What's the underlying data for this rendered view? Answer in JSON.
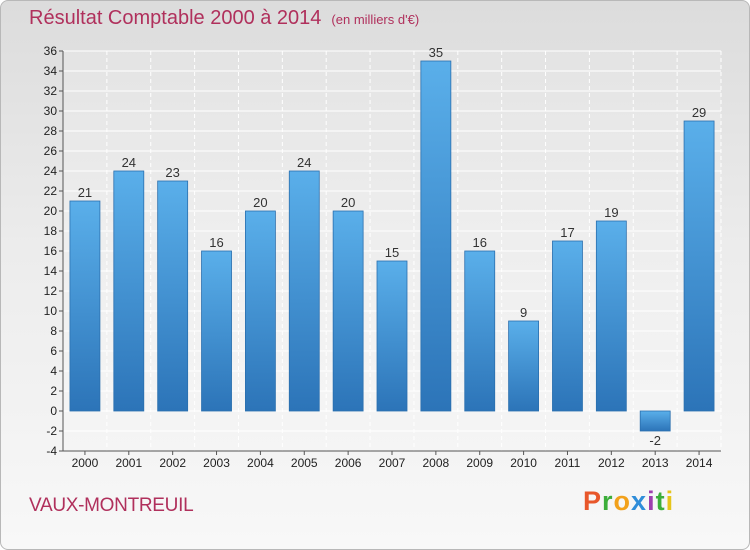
{
  "chart_data": {
    "type": "bar",
    "title": "Résultat Comptable 2000 à 2014",
    "subtitle": "(en milliers d'€)",
    "categories": [
      "2000",
      "2001",
      "2002",
      "2003",
      "2004",
      "2005",
      "2006",
      "2007",
      "2008",
      "2009",
      "2010",
      "2011",
      "2012",
      "2013",
      "2014"
    ],
    "values": [
      21,
      24,
      23,
      16,
      20,
      24,
      20,
      15,
      35,
      16,
      9,
      17,
      19,
      -2,
      29
    ],
    "ylim": [
      -4,
      36
    ],
    "ytick_step": 2,
    "grid": true,
    "bar_color": "#3a91d4",
    "xlabel": "",
    "ylabel": ""
  },
  "location": "VAUX-MONTREUIL",
  "brand": {
    "letters": [
      "P",
      "r",
      "o",
      "x",
      "i",
      "t",
      "i"
    ],
    "colors": [
      "#e8572b",
      "#3cae3a",
      "#f2a11b",
      "#2f8dd9",
      "#9e3fae",
      "#3cae3a",
      "#e6c51a"
    ]
  }
}
